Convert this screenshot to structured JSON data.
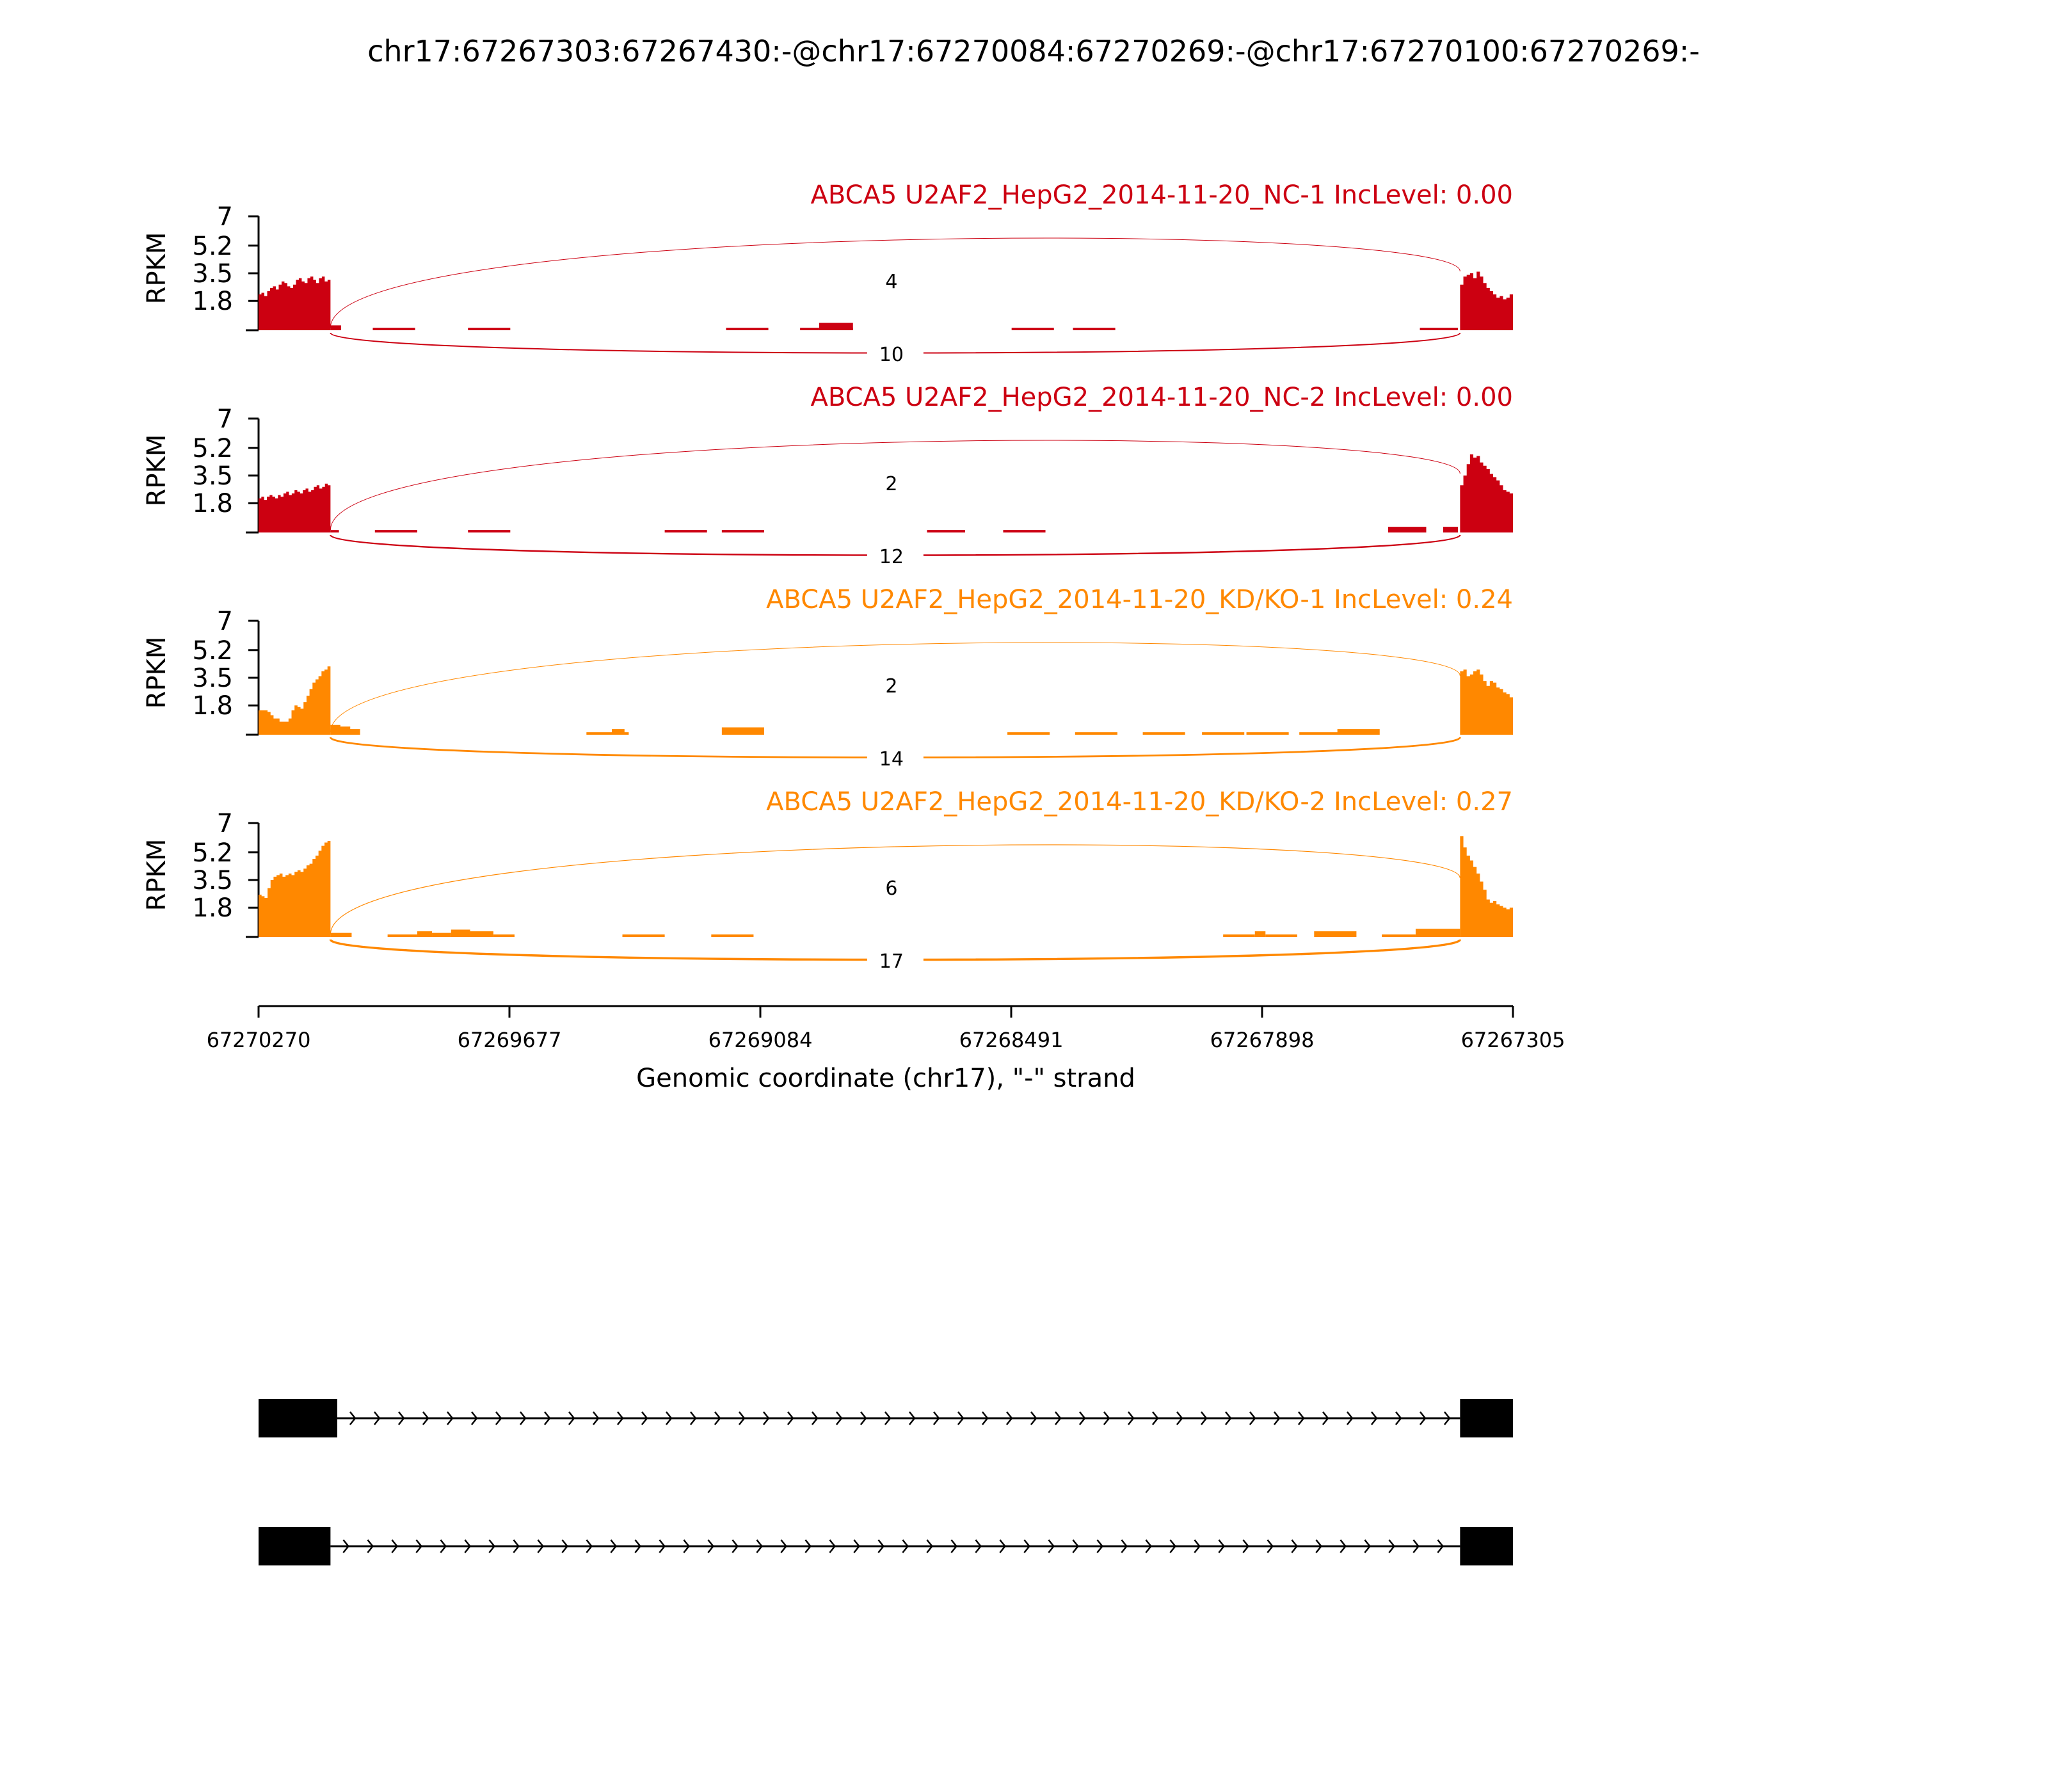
{
  "title": "chr17:67267303:67267430:-@chr17:67270084:67270269:-@chr17:67270100:67270269:-",
  "chart_data": {
    "type": "area",
    "chart_kind": "sashimi",
    "x_axis": {
      "label": "Genomic coordinate (chr17), \"-\" strand",
      "reversed": true,
      "range": [
        67270270,
        67267305
      ],
      "ticks": [
        67270270,
        67269677,
        67269084,
        67268491,
        67267898,
        67267305
      ],
      "tick_labels": [
        "67270270",
        "67269677",
        "67269084",
        "67268491",
        "67267898",
        "67267305"
      ]
    },
    "y_axis": {
      "label": "RPKM",
      "range": [
        0,
        7
      ],
      "ticks": [
        1.8,
        3.5,
        5.2,
        7
      ],
      "tick_labels": [
        "1.8",
        "3.5",
        "5.2",
        "7"
      ]
    },
    "colors": {
      "NC": "#cc0011",
      "KD": "#ff8800",
      "structure": "#000000"
    },
    "exons": {
      "upstream": [
        67270270,
        67270100
      ],
      "downstream": [
        67267430,
        67267305
      ]
    },
    "panels": [
      {
        "label": "ABCA5 U2AF2_HepG2_2014-11-20_NC-1 IncLevel: 0.00",
        "color": "#cc0011",
        "junctions": [
          {
            "from": 67270100,
            "to": 67267430,
            "count": 4,
            "count_label": "4",
            "side": "above"
          },
          {
            "from": 67270100,
            "to": 67267430,
            "count": 10,
            "count_label": "10",
            "side": "below"
          }
        ],
        "coverage": [
          {
            "start": 67270270,
            "end": 67270100,
            "values": [
              2.2,
              2.3,
              2.1,
              2.4,
              2.6,
              2.7,
              2.5,
              2.8,
              3.0,
              2.9,
              2.7,
              2.6,
              2.8,
              3.1,
              3.2,
              3.0,
              2.9,
              3.2,
              3.3,
              3.1,
              2.9,
              3.2,
              3.3,
              3.0,
              3.1
            ]
          },
          {
            "start": 67270100,
            "end": 67270075,
            "values": [
              0.3
            ]
          },
          {
            "start": 67270000,
            "end": 67269900,
            "values": [
              0.15
            ]
          },
          {
            "start": 67269775,
            "end": 67269675,
            "values": [
              0.15
            ]
          },
          {
            "start": 67269165,
            "end": 67269065,
            "values": [
              0.15
            ]
          },
          {
            "start": 67268990,
            "end": 67268945,
            "values": [
              0.15
            ]
          },
          {
            "start": 67268945,
            "end": 67268865,
            "values": [
              0.45
            ]
          },
          {
            "start": 67268865,
            "end": 67268890,
            "values": [
              0.15
            ]
          },
          {
            "start": 67268490,
            "end": 67268390,
            "values": [
              0.15
            ]
          },
          {
            "start": 67268345,
            "end": 67268245,
            "values": [
              0.15
            ]
          },
          {
            "start": 67267525,
            "end": 67267435,
            "values": [
              0.15
            ]
          },
          {
            "start": 67267430,
            "end": 67267305,
            "values": [
              2.8,
              3.3,
              3.4,
              3.5,
              3.2,
              3.6,
              3.3,
              2.9,
              2.6,
              2.4,
              2.2,
              2.0,
              2.1,
              1.9,
              2.0,
              2.2
            ]
          }
        ]
      },
      {
        "label": "ABCA5 U2AF2_HepG2_2014-11-20_NC-2 IncLevel: 0.00",
        "color": "#cc0011",
        "junctions": [
          {
            "from": 67270100,
            "to": 67267430,
            "count": 2,
            "count_label": "2",
            "side": "above"
          },
          {
            "from": 67270100,
            "to": 67267430,
            "count": 12,
            "count_label": "12",
            "side": "below"
          }
        ],
        "coverage": [
          {
            "start": 67270270,
            "end": 67270100,
            "values": [
              2.1,
              2.2,
              2.0,
              2.2,
              2.3,
              2.2,
              2.1,
              2.3,
              2.2,
              2.4,
              2.5,
              2.3,
              2.4,
              2.6,
              2.5,
              2.4,
              2.6,
              2.7,
              2.5,
              2.6,
              2.8,
              2.9,
              2.7,
              2.8,
              3.0,
              2.9
            ]
          },
          {
            "start": 67270100,
            "end": 67270080,
            "values": [
              0.15
            ]
          },
          {
            "start": 67269995,
            "end": 67269895,
            "values": [
              0.15
            ]
          },
          {
            "start": 67269775,
            "end": 67269675,
            "values": [
              0.15
            ]
          },
          {
            "start": 67269310,
            "end": 67269210,
            "values": [
              0.15
            ]
          },
          {
            "start": 67269175,
            "end": 67269075,
            "values": [
              0.15
            ]
          },
          {
            "start": 67268690,
            "end": 67268600,
            "values": [
              0.15
            ]
          },
          {
            "start": 67268510,
            "end": 67268410,
            "values": [
              0.15
            ]
          },
          {
            "start": 67267600,
            "end": 67267510,
            "values": [
              0.35
            ]
          },
          {
            "start": 67267470,
            "end": 67267435,
            "values": [
              0.35
            ]
          },
          {
            "start": 67267430,
            "end": 67267305,
            "values": [
              2.9,
              3.5,
              4.2,
              4.8,
              4.6,
              4.7,
              4.3,
              4.1,
              3.9,
              3.6,
              3.4,
              3.2,
              2.9,
              2.6,
              2.5,
              2.4
            ]
          }
        ]
      },
      {
        "label": "ABCA5 U2AF2_HepG2_2014-11-20_KD/KO-1 IncLevel: 0.24",
        "color": "#ff8800",
        "junctions": [
          {
            "from": 67270100,
            "to": 67267430,
            "count": 2,
            "count_label": "2",
            "side": "above"
          },
          {
            "from": 67270100,
            "to": 67267430,
            "count": 14,
            "count_label": "14",
            "side": "below"
          }
        ],
        "coverage": [
          {
            "start": 67270270,
            "end": 67270100,
            "values": [
              1.5,
              1.5,
              1.5,
              1.4,
              1.2,
              1.0,
              1.0,
              0.8,
              0.8,
              0.8,
              1.0,
              1.5,
              1.8,
              1.7,
              1.6,
              2.0,
              2.4,
              2.8,
              3.2,
              3.4,
              3.6,
              3.9,
              4.0,
              4.2
            ]
          },
          {
            "start": 67270100,
            "end": 67270030,
            "values": [
              0.6,
              0.5,
              0.35
            ]
          },
          {
            "start": 67269495,
            "end": 67269395,
            "values": [
              0.15
            ]
          },
          {
            "start": 67269435,
            "end": 67269405,
            "values": [
              0.35
            ]
          },
          {
            "start": 67269175,
            "end": 67269075,
            "values": [
              0.45
            ]
          },
          {
            "start": 67268500,
            "end": 67268400,
            "values": [
              0.15
            ]
          },
          {
            "start": 67268340,
            "end": 67268240,
            "values": [
              0.15
            ]
          },
          {
            "start": 67268180,
            "end": 67268080,
            "values": [
              0.15
            ]
          },
          {
            "start": 67268040,
            "end": 67267940,
            "values": [
              0.15
            ]
          },
          {
            "start": 67267935,
            "end": 67267835,
            "values": [
              0.15
            ]
          },
          {
            "start": 67267810,
            "end": 67267710,
            "values": [
              0.15
            ]
          },
          {
            "start": 67267720,
            "end": 67267620,
            "values": [
              0.35
            ]
          },
          {
            "start": 67267430,
            "end": 67267305,
            "values": [
              3.9,
              4.0,
              3.6,
              3.7,
              3.9,
              4.0,
              3.7,
              3.3,
              3.0,
              3.3,
              3.2,
              2.9,
              2.8,
              2.6,
              2.5,
              2.3
            ]
          }
        ]
      },
      {
        "label": "ABCA5 U2AF2_HepG2_2014-11-20_KD/KO-2 IncLevel: 0.27",
        "color": "#ff8800",
        "junctions": [
          {
            "from": 67270100,
            "to": 67267430,
            "count": 6,
            "count_label": "6",
            "side": "above"
          },
          {
            "from": 67270100,
            "to": 67267430,
            "count": 17,
            "count_label": "17",
            "side": "below"
          }
        ],
        "coverage": [
          {
            "start": 67270270,
            "end": 67270100,
            "values": [
              2.6,
              2.5,
              2.4,
              3.0,
              3.5,
              3.7,
              3.8,
              3.9,
              3.7,
              3.8,
              3.9,
              3.8,
              4.0,
              4.1,
              4.0,
              4.2,
              4.4,
              4.5,
              4.8,
              5.0,
              5.3,
              5.6,
              5.8,
              5.9
            ]
          },
          {
            "start": 67270100,
            "end": 67270050,
            "values": [
              0.25
            ]
          },
          {
            "start": 67269965,
            "end": 67269895,
            "values": [
              0.15
            ]
          },
          {
            "start": 67269895,
            "end": 67269860,
            "values": [
              0.35
            ]
          },
          {
            "start": 67269860,
            "end": 67269815,
            "values": [
              0.25
            ]
          },
          {
            "start": 67269815,
            "end": 67269770,
            "values": [
              0.45
            ]
          },
          {
            "start": 67269770,
            "end": 67269715,
            "values": [
              0.35
            ]
          },
          {
            "start": 67269715,
            "end": 67269665,
            "values": [
              0.15
            ]
          },
          {
            "start": 67269410,
            "end": 67269310,
            "values": [
              0.15
            ]
          },
          {
            "start": 67269200,
            "end": 67269100,
            "values": [
              0.15
            ]
          },
          {
            "start": 67267990,
            "end": 67267915,
            "values": [
              0.15
            ]
          },
          {
            "start": 67267915,
            "end": 67267890,
            "values": [
              0.35
            ]
          },
          {
            "start": 67267890,
            "end": 67267815,
            "values": [
              0.15
            ]
          },
          {
            "start": 67267775,
            "end": 67267675,
            "values": [
              0.35
            ]
          },
          {
            "start": 67267615,
            "end": 67267535,
            "values": [
              0.15
            ]
          },
          {
            "start": 67267535,
            "end": 67267430,
            "values": [
              0.5
            ]
          },
          {
            "start": 67267430,
            "end": 67267305,
            "values": [
              6.2,
              5.5,
              5.0,
              4.7,
              4.3,
              3.9,
              3.4,
              2.9,
              2.3,
              2.1,
              2.2,
              2.0,
              1.9,
              1.8,
              1.7,
              1.8
            ]
          }
        ]
      }
    ],
    "isoforms": [
      {
        "exons": [
          [
            67270270,
            67270084
          ],
          [
            67267430,
            67267305
          ]
        ],
        "intron_direction": "right"
      },
      {
        "exons": [
          [
            67270270,
            67270100
          ],
          [
            67267430,
            67267305
          ]
        ],
        "intron_direction": "right"
      }
    ]
  }
}
